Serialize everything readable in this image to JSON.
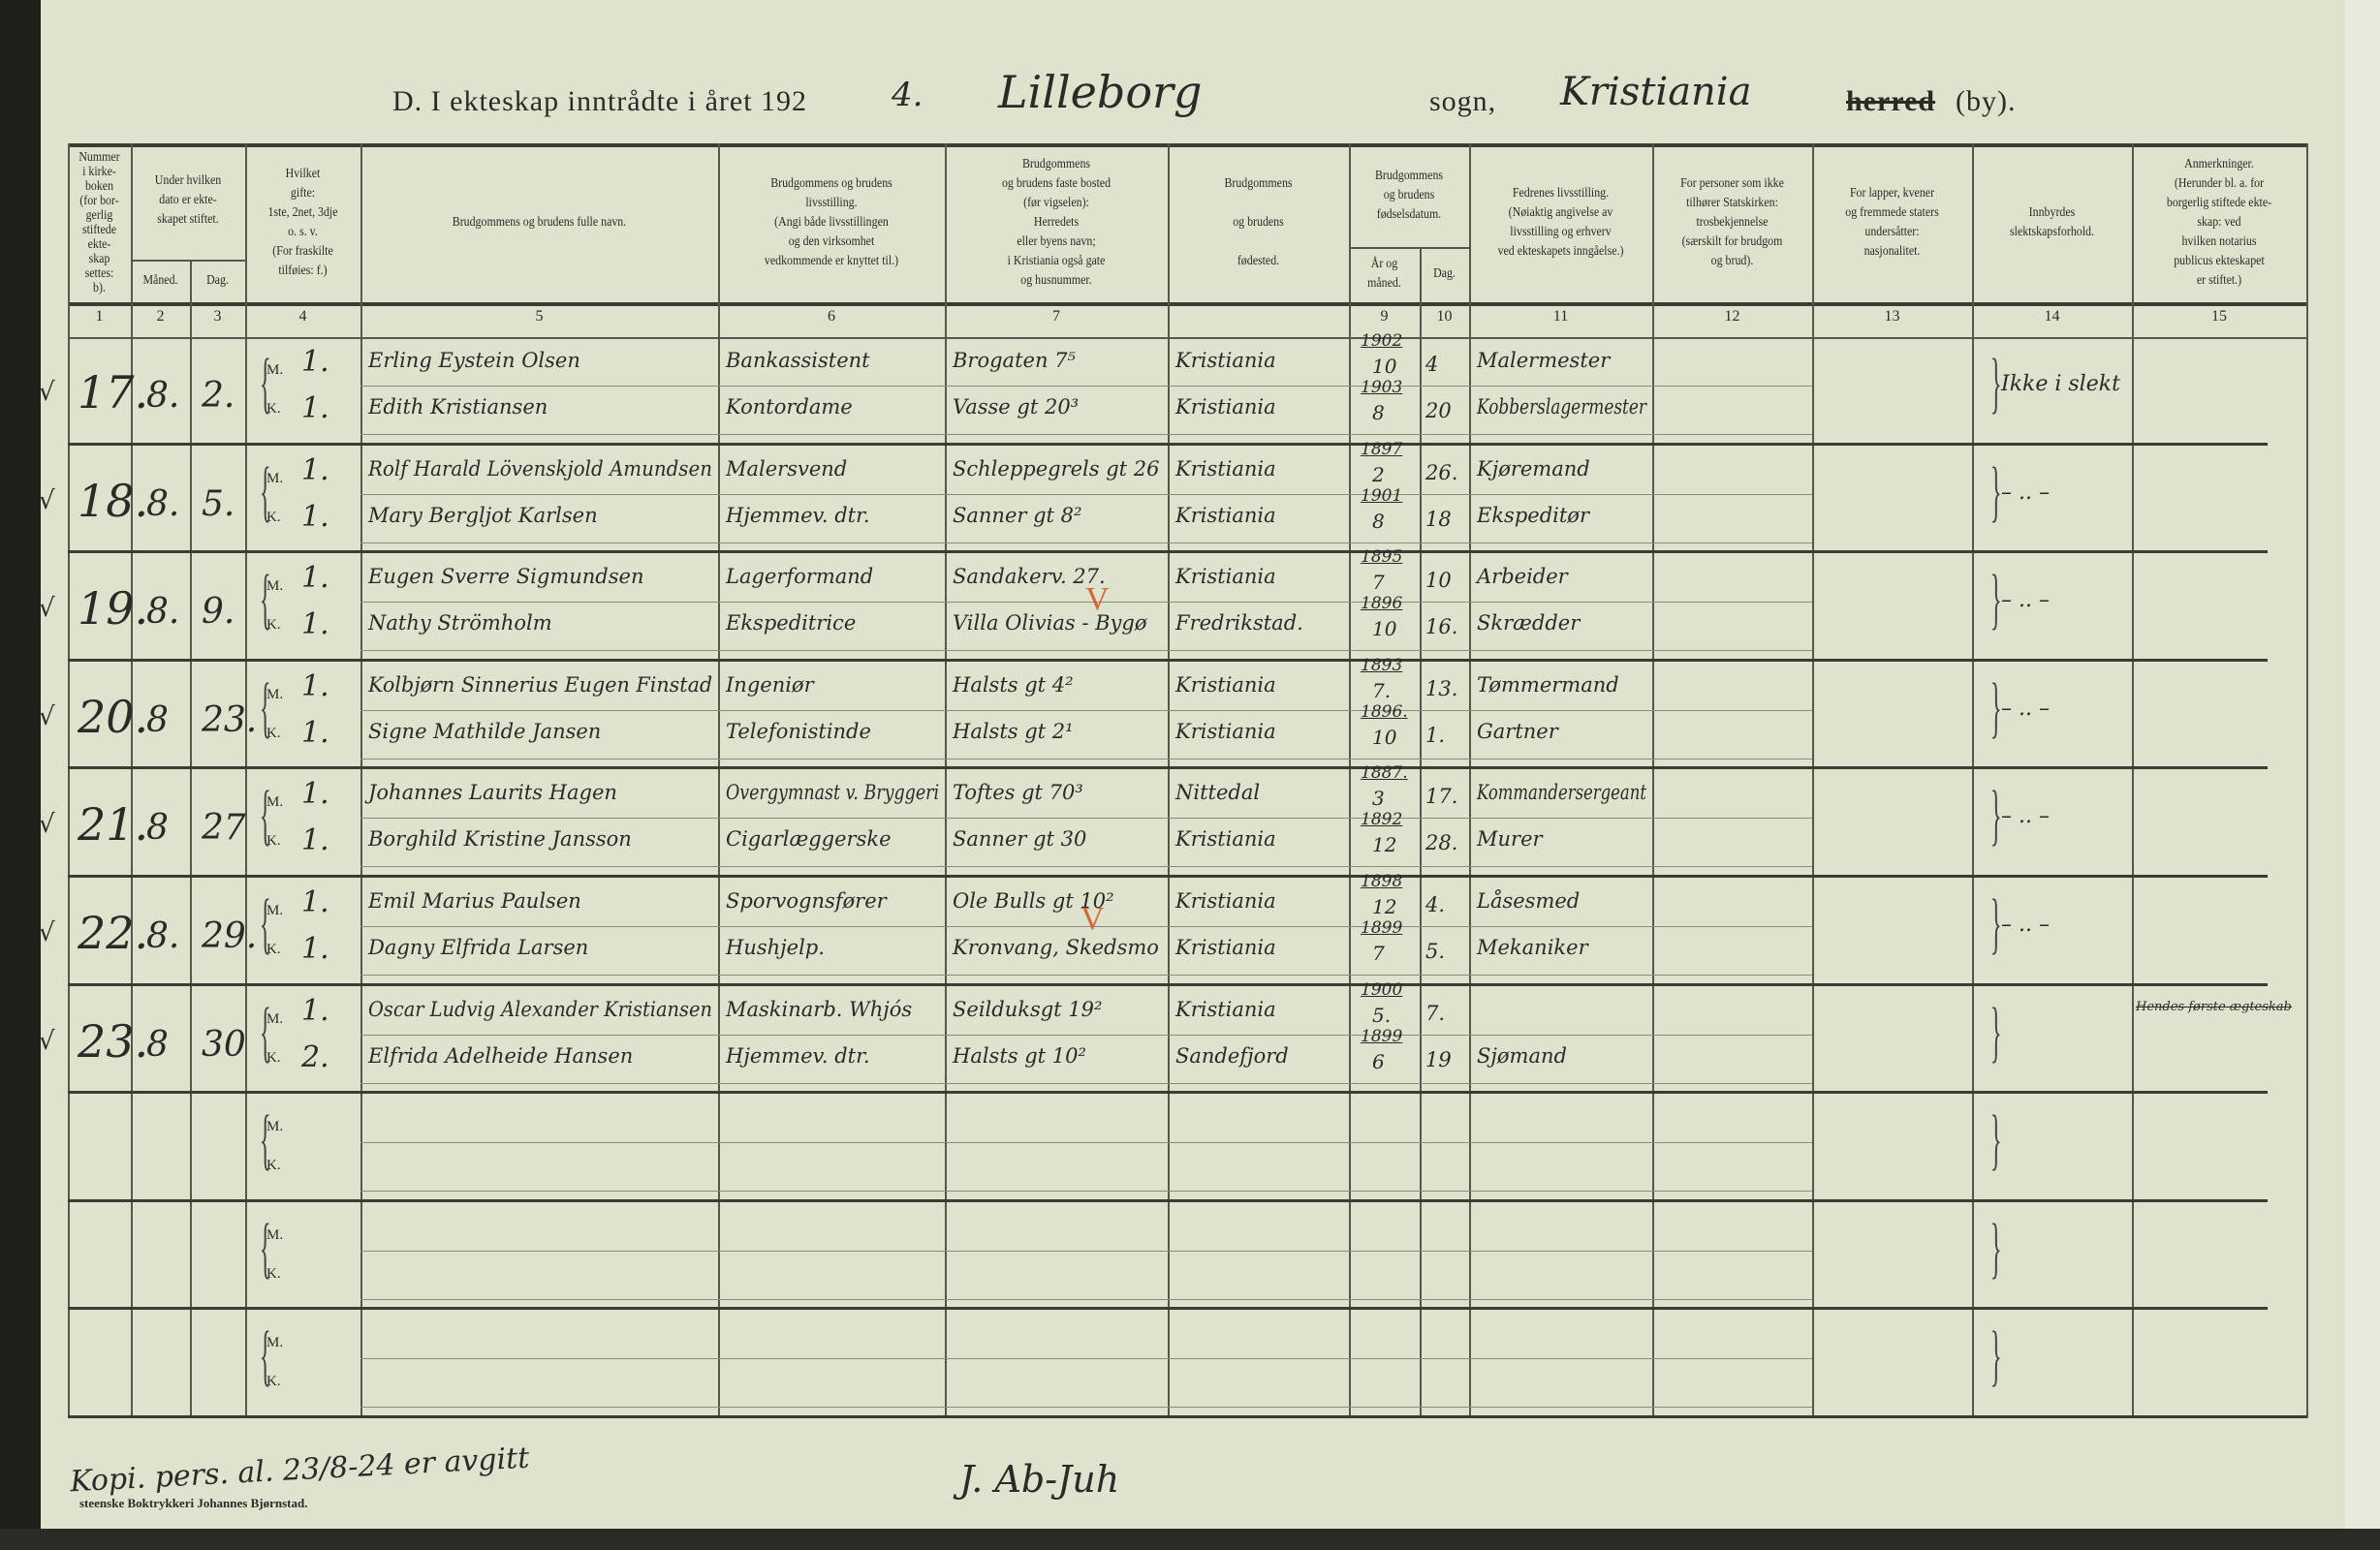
{
  "title": {
    "prefix": "D.  I ekteskap inntrådte i året 192",
    "year_suffix": "4.",
    "parish": "Lilleborg",
    "sogn_label": "sogn,",
    "municipality": "Kristiania",
    "herred_label": "herred",
    "by_label": "(by)."
  },
  "columns": [
    {
      "num": "1",
      "header": "Nummer\ni kirke-\nboken\n(for bor-\ngerlig\nstiftede\nekte-\nskap\nsettes:\nb)."
    },
    {
      "num": "2",
      "header": "Måned."
    },
    {
      "num": "3",
      "header": "Dag."
    },
    {
      "num": "4",
      "header": "Hvilket\ngifte:\n1ste, 2net, 3dje\no. s. v.\n(For fraskilte\ntilføies: f.)"
    },
    {
      "num": "5",
      "header": "Brudgommens og brudens fulle navn."
    },
    {
      "num": "6",
      "header": "Brudgommens og brudens\nlivsstilling.\n(Angi både livsstillingen\nog den virksomhet\nvedkommende er knyttet til.)"
    },
    {
      "num": "7",
      "header": "Brudgommens\nog brudens faste bosted\n(før vigselen):\nHerredets\neller byens navn;\ni Kristiania også gate\nog husnummer."
    },
    {
      "num": "",
      "header": "Brudgommens\n\nog brudens\n\nfødested."
    },
    {
      "num": "9",
      "header": "År og\nmåned."
    },
    {
      "num": "10",
      "header": "Dag."
    },
    {
      "num": "11",
      "header": "Fedrenes livsstilling.\n(Nøiaktig angivelse av\nlivsstilling og erhverv\nved ekteskapets inngåelse.)"
    },
    {
      "num": "12",
      "header": "For personer som ikke\ntilhører Statskirken:\ntrosbekjennelse\n(særskilt for brudgom\nog brud)."
    },
    {
      "num": "13",
      "header": "For lapper, kvener\nog fremmede staters\nundersåtter:\nnasjonalitet."
    },
    {
      "num": "14",
      "header": "Innbyrdes\nslektskapsforhold."
    },
    {
      "num": "15",
      "header": "Anmerkninger.\n(Herunder bl. a. for\nborgerlig stiftede ekte-\nskap: ved\nhvilken notarius\npublicus ekteskapet\ner stiftet.)"
    }
  ],
  "group_headers": {
    "date": "Under hvilken\ndato er ekte-\nskapet stiftet.",
    "birth": "Brudgommens\nog brudens\nfødselsdatum."
  },
  "labels": {
    "groom": "M.",
    "bride": "K."
  },
  "entries": [
    {
      "number": "17.",
      "month": "8.",
      "day": "2.",
      "kinship": "Ikke i slekt",
      "remarks": "",
      "groom": {
        "order": "1.",
        "name": "Erling Eystein Olsen",
        "occupation": "Bankassistent",
        "residence": "Brogaten 7⁵",
        "birthplace": "Kristiania",
        "birth_year": "1902",
        "birth_month": "10",
        "birth_day": "4",
        "father": "Malermester"
      },
      "bride": {
        "order": "1.",
        "name": "Edith Kristiansen",
        "occupation": "Kontordame",
        "residence": "Vasse gt 20³",
        "birthplace": "Kristiania",
        "birth_year": "1903",
        "birth_month": "8",
        "birth_day": "20",
        "father": "Kobberslagermester"
      }
    },
    {
      "number": "18.",
      "month": "8.",
      "day": "5.",
      "kinship": "– .. –",
      "remarks": "",
      "groom": {
        "order": "1.",
        "name": "Rolf Harald Lövenskjold Amundsen",
        "occupation": "Malersvend",
        "residence": "Schleppegrels gt 26",
        "birthplace": "Kristiania",
        "birth_year": "1897",
        "birth_month": "2",
        "birth_day": "26.",
        "father": "Kjøremand"
      },
      "bride": {
        "order": "1.",
        "name": "Mary Bergljot Karlsen",
        "occupation": "Hjemmev. dtr.",
        "residence": "Sanner gt 8²",
        "birthplace": "Kristiania",
        "birth_year": "1901",
        "birth_month": "8",
        "birth_day": "18",
        "father": "Ekspeditør"
      }
    },
    {
      "number": "19.",
      "month": "8.",
      "day": "9.",
      "kinship": "– .. –",
      "remarks": "",
      "groom": {
        "order": "1.",
        "name": "Eugen Sverre Sigmundsen",
        "occupation": "Lagerformand",
        "residence": "Sandakerv. 27.",
        "birthplace": "Kristiania",
        "birth_year": "1895",
        "birth_month": "7",
        "birth_day": "10",
        "father": "Arbeider"
      },
      "bride": {
        "order": "1.",
        "name": "Nathy Strömholm",
        "occupation": "Ekspeditrice",
        "residence": "Villa Olivias - Bygø",
        "birthplace": "Fredrikstad.",
        "birth_year": "1896",
        "birth_month": "10",
        "birth_day": "16.",
        "father": "Skrædder"
      }
    },
    {
      "number": "20.",
      "month": "8",
      "day": "23.",
      "kinship": "– .. –",
      "remarks": "",
      "groom": {
        "order": "1.",
        "name": "Kolbjørn Sinnerius Eugen Finstad",
        "occupation": "Ingeniør",
        "residence": "Halsts gt 4²",
        "birthplace": "Kristiania",
        "birth_year": "1893",
        "birth_month": "7.",
        "birth_day": "13.",
        "father": "Tømmermand"
      },
      "bride": {
        "order": "1.",
        "name": "Signe Mathilde Jansen",
        "occupation": "Telefonistinde",
        "residence": "Halsts gt 2¹",
        "birthplace": "Kristiania",
        "birth_year": "1896.",
        "birth_month": "10",
        "birth_day": "1.",
        "father": "Gartner"
      }
    },
    {
      "number": "21.",
      "month": "8",
      "day": "27",
      "kinship": "– .. –",
      "remarks": "",
      "groom": {
        "order": "1.",
        "name": "Johannes Laurits Hagen",
        "occupation": "Overgymnast v. Bryggeri",
        "residence": "Toftes gt 70³",
        "birthplace": "Nittedal",
        "birth_year": "1887.",
        "birth_month": "3",
        "birth_day": "17.",
        "father": "Kommandersergeant"
      },
      "bride": {
        "order": "1.",
        "name": "Borghild Kristine Jansson",
        "occupation": "Cigarlæggerske",
        "residence": "Sanner gt 30",
        "birthplace": "Kristiania",
        "birth_year": "1892",
        "birth_month": "12",
        "birth_day": "28.",
        "father": "Murer"
      }
    },
    {
      "number": "22.",
      "month": "8.",
      "day": "29.",
      "kinship": "– .. –",
      "remarks": "",
      "groom": {
        "order": "1.",
        "name": "Emil Marius Paulsen",
        "occupation": "Sporvognsfører",
        "residence": "Ole Bulls gt 10²",
        "birthplace": "Kristiania",
        "birth_year": "1898",
        "birth_month": "12",
        "birth_day": "4.",
        "father": "Låsesmed"
      },
      "bride": {
        "order": "1.",
        "name": "Dagny Elfrida Larsen",
        "occupation": "Hushjelp.",
        "residence": "Kronvang, Skedsmo",
        "birthplace": "Kristiania",
        "birth_year": "1899",
        "birth_month": "7",
        "birth_day": "5.",
        "father": "Mekaniker"
      }
    },
    {
      "number": "23.",
      "month": "8",
      "day": "30",
      "kinship": "",
      "remarks": "Hendes første ægteskab",
      "groom": {
        "order": "1.",
        "name": "Oscar Ludvig Alexander Kristiansen",
        "occupation": "Maskinarb. Whjós",
        "residence": "Seilduksgt 19²",
        "birthplace": "Kristiania",
        "birth_year": "1900",
        "birth_month": "5.",
        "birth_day": "7.",
        "father": ""
      },
      "bride": {
        "order": "2.",
        "name": "Elfrida Adelheide Hansen",
        "occupation": "Hjemmev. dtr.",
        "residence": "Halsts gt 10²",
        "birthplace": "Sandefjord",
        "birth_year": "1899",
        "birth_month": "6",
        "birth_day": "19",
        "father": "Sjømand"
      }
    }
  ],
  "empty_rows": 3,
  "footer": {
    "note": "Kopi. pers. al. 23/8-24 er avgitt",
    "printer": "steenske Boktrykkeri Johannes Bjørnstad.",
    "signature": "J. Ab-Juh"
  },
  "colors": {
    "paper": "#dfe3cd",
    "ink": "#2a2a28",
    "red_mark": "#d2683a"
  }
}
